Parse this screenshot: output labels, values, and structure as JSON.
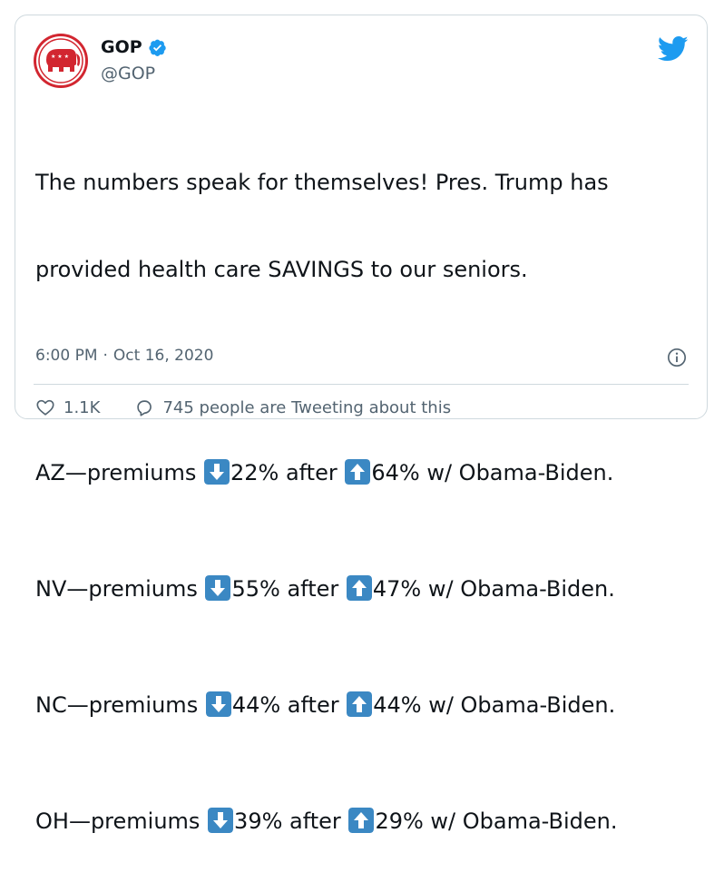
{
  "author": {
    "name": "GOP",
    "handle": "@GOP",
    "verified": true
  },
  "tweet": {
    "lines": [
      {
        "text": "The numbers speak for themselves! Pres. Trump has"
      },
      {
        "text": "provided health care SAVINGS to our seniors."
      },
      {
        "text": ""
      },
      {
        "state": "AZ—premiums ",
        "down": "22% after ",
        "up": "64% w/ Obama-Biden."
      },
      {
        "state": "NV—premiums ",
        "down": "55% after ",
        "up": "47% w/ Obama-Biden."
      },
      {
        "state": "NC—premiums ",
        "down": "44% after ",
        "up": "44% w/ Obama-Biden."
      },
      {
        "state": "OH—premiums ",
        "down": "39% after ",
        "up": "29% w/ Obama-Biden."
      }
    ]
  },
  "meta": {
    "time": "6:00 PM",
    "separator": "·",
    "date": "Oct 16, 2020"
  },
  "actions": {
    "likes": "1.1K",
    "tweeting": "745 people are Tweeting about this"
  },
  "colors": {
    "accent": "#1d9bf0",
    "text": "#0f1419",
    "muted": "#536471",
    "border": "#cfd9de",
    "gop_red": "#e0242f"
  },
  "icons": [
    "gop-elephant-logo",
    "verified-badge-icon",
    "twitter-bird-icon",
    "down-arrow-emoji",
    "up-arrow-emoji",
    "info-icon",
    "heart-icon",
    "reply-bubble-icon"
  ]
}
